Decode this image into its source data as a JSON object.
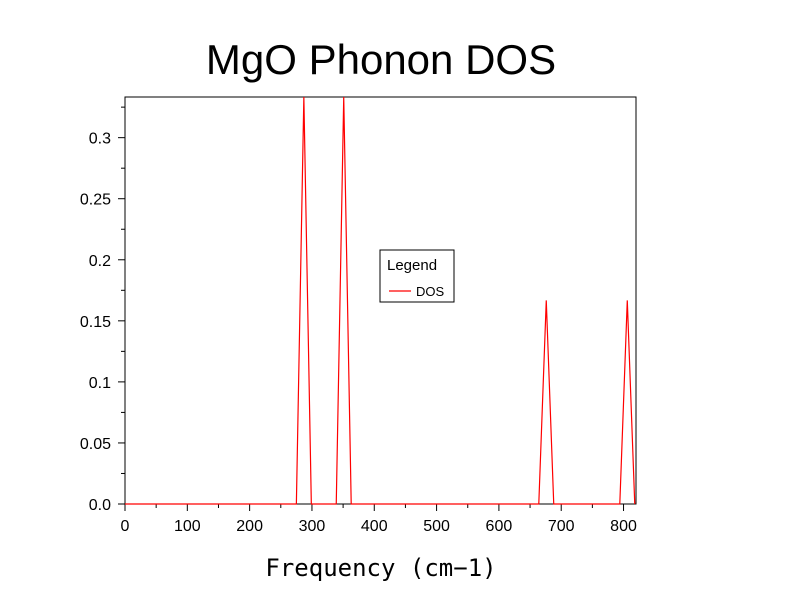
{
  "chart_data": {
    "type": "line",
    "title": "MgO Phonon DOS",
    "xlabel": "Frequency (cm−1)",
    "ylabel": "",
    "xlim": [
      0,
      820
    ],
    "ylim": [
      0,
      0.3333
    ],
    "grid": false,
    "x_ticks": [
      0,
      100,
      200,
      300,
      400,
      500,
      600,
      700,
      800
    ],
    "x_tick_labels": [
      "0",
      "100",
      "200",
      "300",
      "400",
      "500",
      "600",
      "700",
      "800"
    ],
    "y_ticks": [
      0,
      0.05,
      0.1,
      0.15,
      0.2,
      0.25,
      0.3
    ],
    "y_tick_labels": [
      "0.0",
      "0.05",
      "0.1",
      "0.15",
      "0.2",
      "0.25",
      "0.3"
    ],
    "legend": {
      "title": "Legend",
      "placement": "center",
      "entries": [
        "DOS"
      ]
    },
    "series": [
      {
        "name": "DOS",
        "color": "#ff0000",
        "x": [
          0,
          275,
          287,
          299,
          339,
          351,
          363,
          664,
          676,
          688,
          794,
          806,
          818
        ],
        "y": [
          0,
          0,
          0.3333,
          0,
          0,
          0.3333,
          0,
          0,
          0.1667,
          0,
          0,
          0.1667,
          0
        ]
      }
    ]
  }
}
